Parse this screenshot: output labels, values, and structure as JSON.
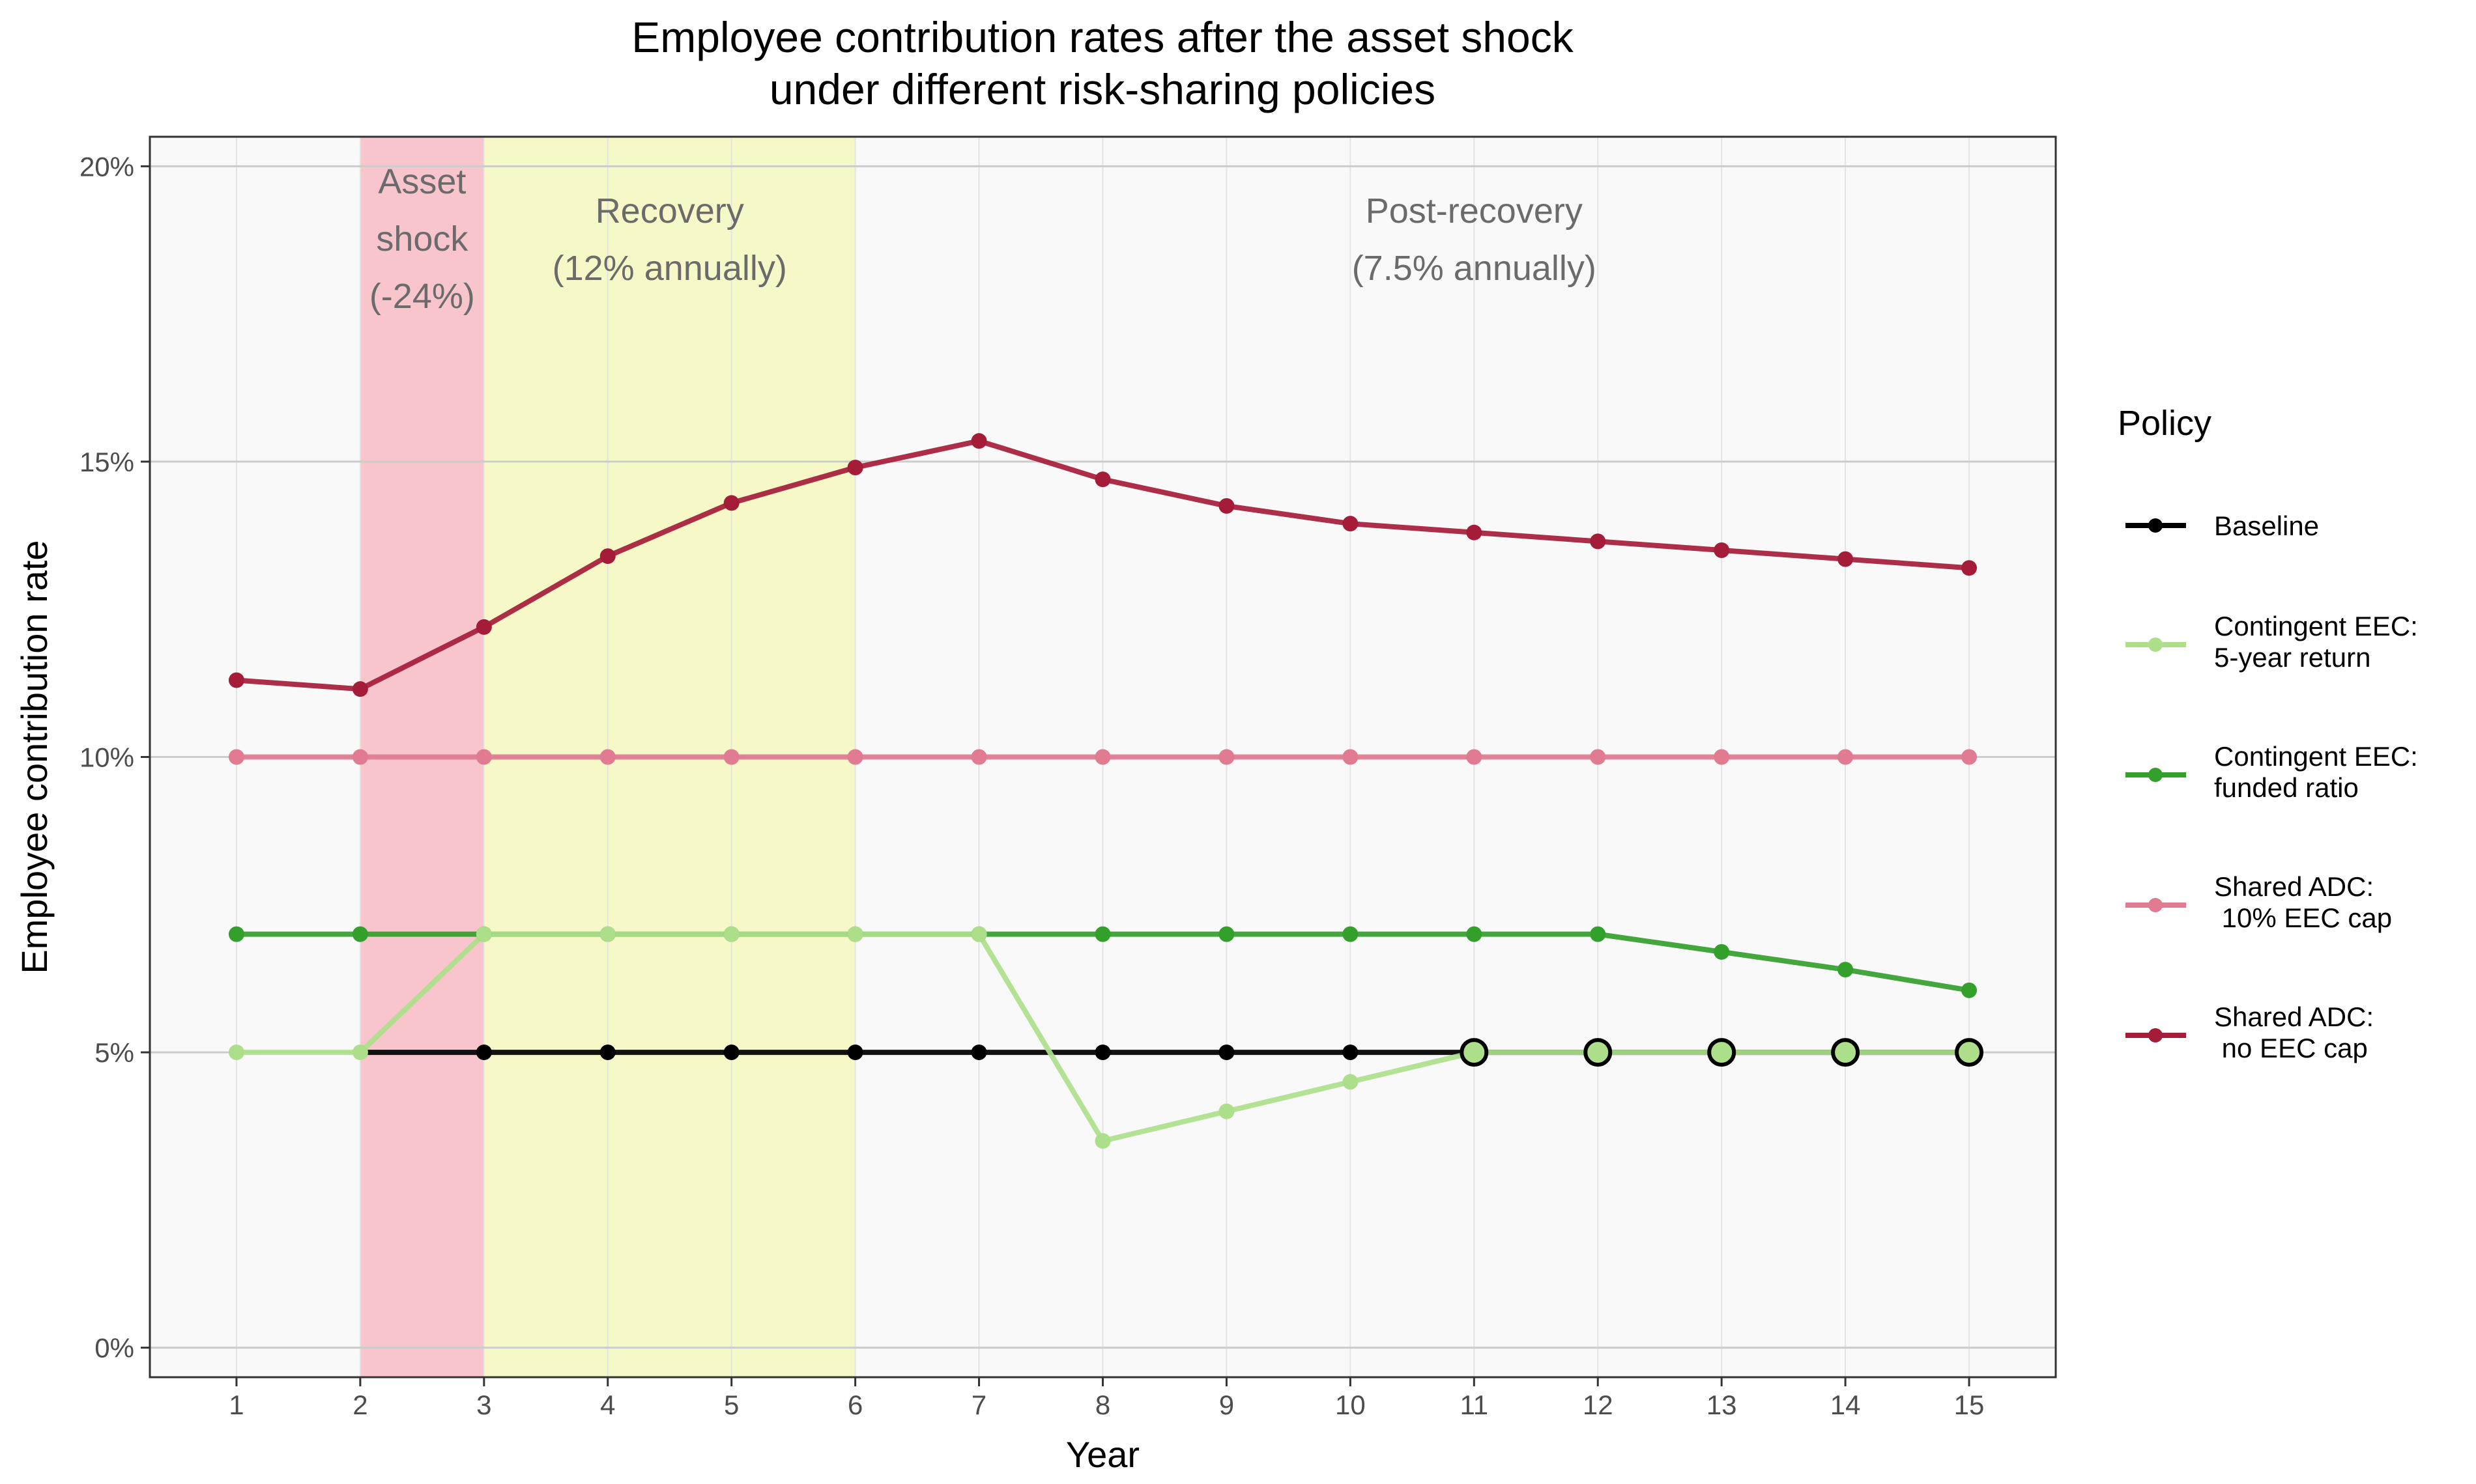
{
  "chart_data": {
    "type": "line",
    "title": [
      "Employee contribution rates after the asset shock",
      "under different risk-sharing policies"
    ],
    "xlabel": "Year",
    "ylabel": "Employee contribution rate",
    "x": [
      1,
      2,
      3,
      4,
      5,
      6,
      7,
      8,
      9,
      10,
      11,
      12,
      13,
      14,
      15
    ],
    "x_ticks": [
      "1",
      "2",
      "3",
      "4",
      "5",
      "6",
      "7",
      "8",
      "9",
      "10",
      "11",
      "12",
      "13",
      "14",
      "15"
    ],
    "xlim": [
      0.3,
      15.7
    ],
    "ylim": [
      -0.005,
      0.205
    ],
    "y_ticks": [
      0,
      0.05,
      0.1,
      0.15,
      0.2
    ],
    "y_tick_labels": [
      "0%",
      "5%",
      "10%",
      "15%",
      "20%"
    ],
    "grid": true,
    "background": "#f9f9f9",
    "phases": [
      {
        "lines": [
          "Asset",
          "shock",
          "(-24%)"
        ],
        "x_start": 2,
        "x_end": 3,
        "color": "#f9c5cc",
        "label_x": 2.5
      },
      {
        "lines": [
          "Recovery",
          "(12% annually)"
        ],
        "x_start": 3,
        "x_end": 6,
        "color": "#f7f8c8",
        "label_x": 4.5
      },
      {
        "lines": [
          "Post-recovery",
          "(7.5% annually)"
        ],
        "x_start": null,
        "x_end": null,
        "color": null,
        "label_x": 11
      }
    ],
    "legend": {
      "title": "Policy",
      "placement": "right"
    },
    "series": [
      {
        "name": "Baseline",
        "legend_lines": [
          "Baseline"
        ],
        "color": "#000000",
        "x": [
          2,
          3,
          4,
          5,
          6,
          7,
          8,
          9,
          10,
          11,
          12,
          13,
          14,
          15
        ],
        "values": [
          0.05,
          0.05,
          0.05,
          0.05,
          0.05,
          0.05,
          0.05,
          0.05,
          0.05,
          0.05,
          0.05,
          0.05,
          0.05,
          0.05
        ],
        "draw_points_from_x": 3
      },
      {
        "name": "Contingent EEC: 5-year return",
        "legend_lines": [
          "Contingent EEC:",
          "5-year return"
        ],
        "color": "#addf8b",
        "x": [
          1,
          2,
          3,
          4,
          5,
          6,
          7,
          8,
          9,
          10,
          11,
          12,
          13,
          14,
          15
        ],
        "values": [
          0.05,
          0.05,
          0.07,
          0.07,
          0.07,
          0.07,
          0.07,
          0.035,
          0.04,
          0.045,
          0.05,
          0.05,
          0.05,
          0.05,
          0.05
        ]
      },
      {
        "name": "Contingent EEC: funded ratio",
        "legend_lines": [
          "Contingent EEC:",
          "funded ratio"
        ],
        "color": "#33a02c",
        "x": [
          1,
          2,
          3,
          4,
          5,
          6,
          7,
          8,
          9,
          10,
          11,
          12,
          13,
          14,
          15
        ],
        "values": [
          0.07,
          0.07,
          0.07,
          0.07,
          0.07,
          0.07,
          0.07,
          0.07,
          0.07,
          0.07,
          0.07,
          0.07,
          0.067,
          0.064,
          0.0605
        ]
      },
      {
        "name": "Shared ADC: 10% EEC cap",
        "legend_lines": [
          "Shared ADC:",
          " 10% EEC cap"
        ],
        "color": "#e07b91",
        "x": [
          1,
          2,
          3,
          4,
          5,
          6,
          7,
          8,
          9,
          10,
          11,
          12,
          13,
          14,
          15
        ],
        "values": [
          0.1,
          0.1,
          0.1,
          0.1,
          0.1,
          0.1,
          0.1,
          0.1,
          0.1,
          0.1,
          0.1,
          0.1,
          0.1,
          0.1,
          0.1
        ]
      },
      {
        "name": "Shared ADC: no EEC cap",
        "legend_lines": [
          "Shared ADC:",
          " no EEC cap"
        ],
        "color": "#a51c38",
        "x": [
          1,
          2,
          3,
          4,
          5,
          6,
          7,
          8,
          9,
          10,
          11,
          12,
          13,
          14,
          15
        ],
        "values": [
          0.113,
          0.1115,
          0.122,
          0.134,
          0.143,
          0.149,
          0.1535,
          0.147,
          0.1425,
          0.1395,
          0.138,
          0.1365,
          0.135,
          0.1335,
          0.132
        ]
      }
    ],
    "highlight_points": {
      "x": [
        11,
        12,
        13,
        14,
        15
      ],
      "y": 0.05,
      "fill": "#addf8b",
      "stroke": "#000000"
    }
  }
}
